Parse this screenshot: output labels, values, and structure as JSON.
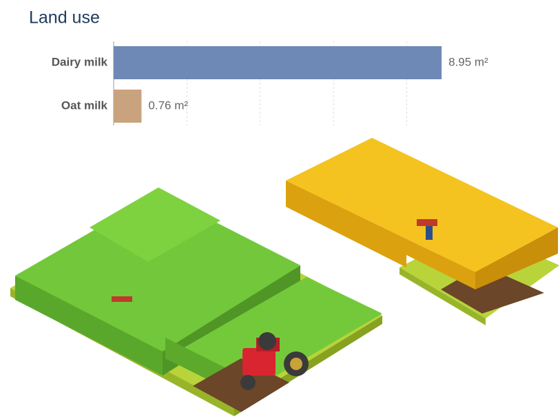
{
  "chart_data": {
    "type": "bar",
    "orientation": "horizontal",
    "title": "Land use",
    "categories": [
      "Dairy milk",
      "Oat milk"
    ],
    "values": [
      8.95,
      0.76
    ],
    "value_labels": [
      "8.95 m²",
      "0.76 m²"
    ],
    "colors": [
      "#6e89b5",
      "#c9a27e"
    ],
    "xlim": [
      0,
      10
    ],
    "xticks": [
      0,
      2,
      4,
      6,
      8
    ],
    "grid": true
  }
}
